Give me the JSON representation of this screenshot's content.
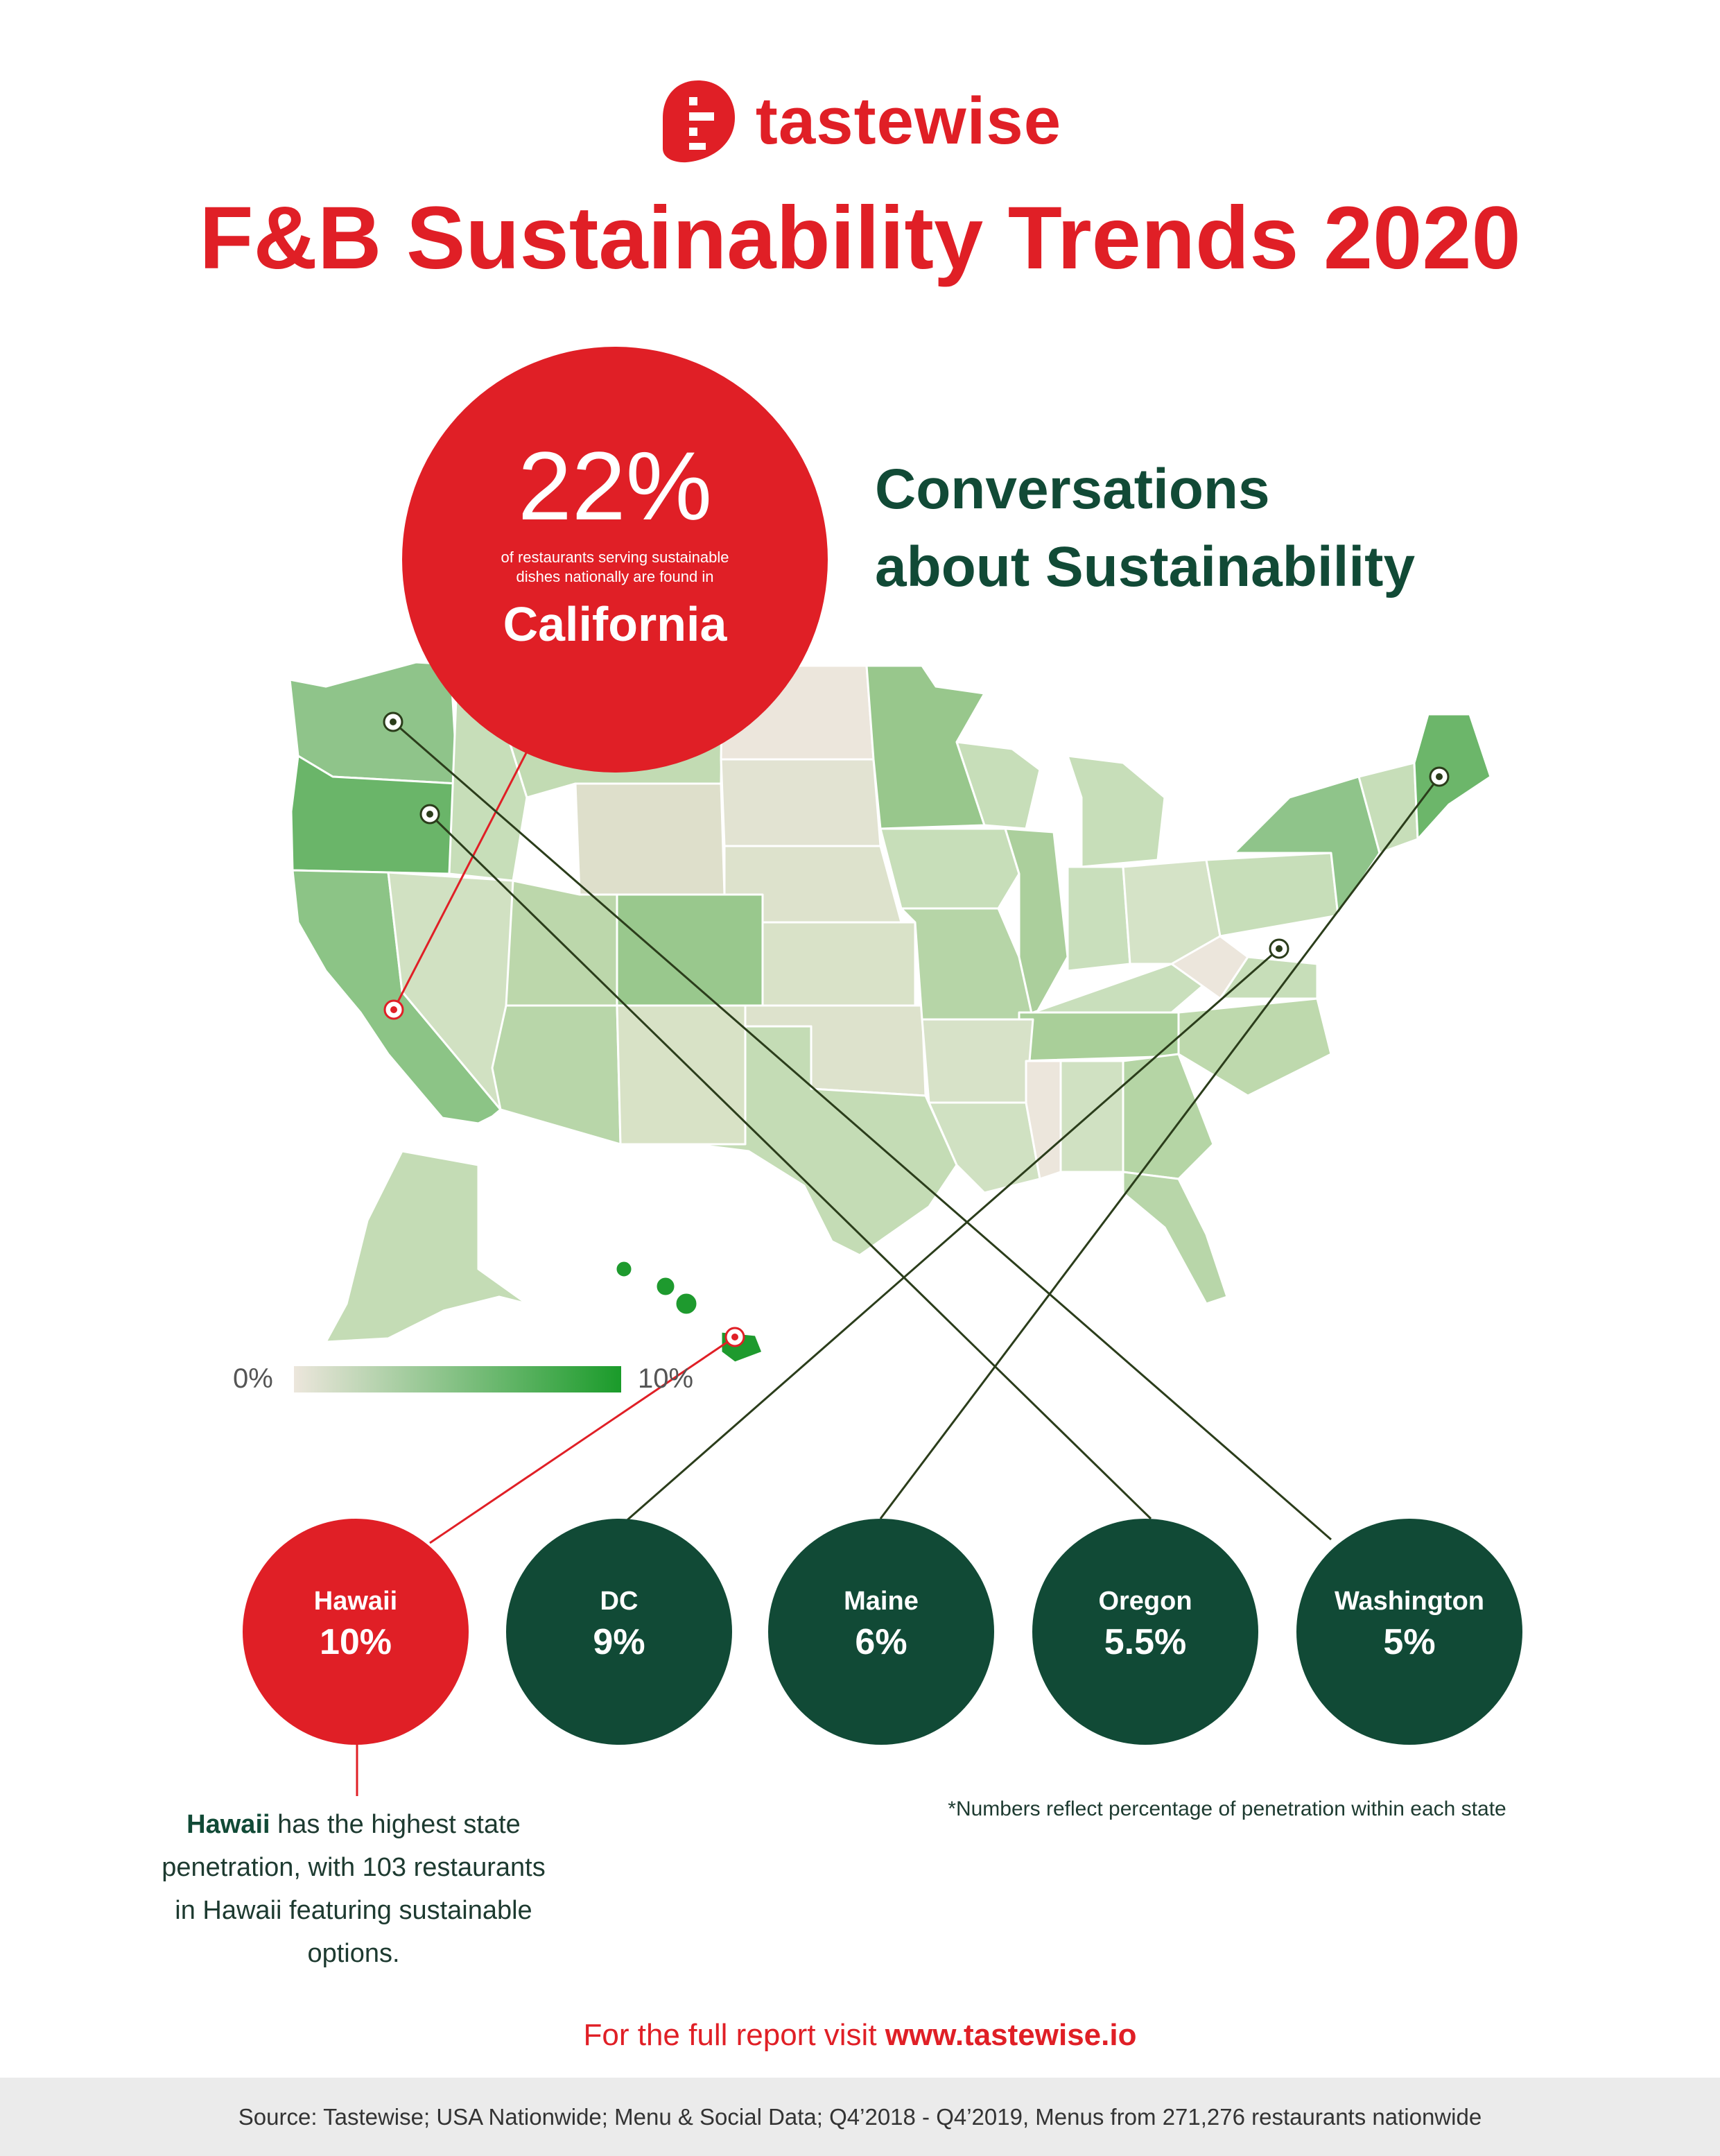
{
  "brand": {
    "name": "tastewise",
    "color": "#e01f26",
    "logo_icon": "tastewise-logo-icon"
  },
  "title": "F&B Sustainability Trends 2020",
  "heading": {
    "line1": "Conversations",
    "line2": "about Sustainability"
  },
  "highlight": {
    "percent": "22%",
    "description": "of restaurants serving sustainable dishes nationally are found in",
    "state": "California"
  },
  "map": {
    "legend": {
      "min_label": "0%",
      "max_label": "10%",
      "min_color": "#ece6dc",
      "max_color": "#1a9b2a"
    },
    "state_penetration_percent": {
      "Hawaii": 10,
      "DC": 9,
      "Maine": 6,
      "Oregon": 5.5,
      "Washington": 5
    }
  },
  "states": [
    {
      "name": "Hawaii",
      "value": "10%",
      "color": "#e01f26"
    },
    {
      "name": "DC",
      "value": "9%",
      "color": "#114a36"
    },
    {
      "name": "Maine",
      "value": "6%",
      "color": "#114a36"
    },
    {
      "name": "Oregon",
      "value": "5.5%",
      "color": "#114a36"
    },
    {
      "name": "Washington",
      "value": "5%",
      "color": "#114a36"
    }
  ],
  "hawaii_note": {
    "bold": "Hawaii",
    "rest": " has the highest state penetration, with 103 restaurants in Hawaii featuring sustainable options."
  },
  "footnote": "*Numbers reflect percentage of penetration within each state",
  "cta": {
    "prefix": "For the full report visit ",
    "link": "www.tastewise.io"
  },
  "source": "Source:  Tastewise; USA Nationwide; Menu & Social Data; Q4’2018 - Q4’2019, Menus from 271,276 restaurants nationwide",
  "colors": {
    "red": "#e01f26",
    "dark_green": "#114a36"
  }
}
